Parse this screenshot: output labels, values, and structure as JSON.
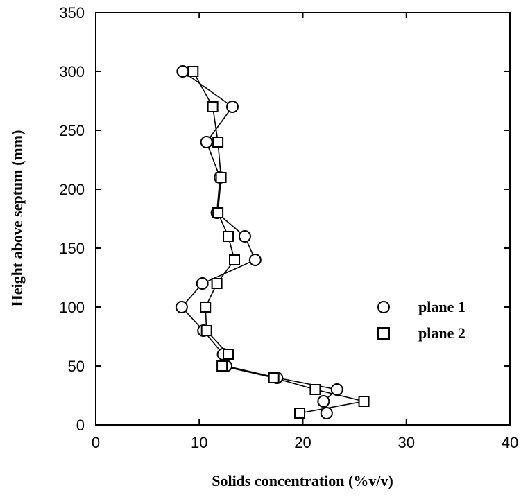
{
  "chart_data": {
    "type": "scatter",
    "title": "",
    "xlabel": "Solids concentration (%v/v)",
    "ylabel": "Height above septum (mm)",
    "xlim": [
      0,
      40
    ],
    "ylim": [
      0,
      350
    ],
    "xticks": [
      0,
      10,
      20,
      30,
      40
    ],
    "yticks": [
      0,
      50,
      100,
      150,
      200,
      250,
      300,
      350
    ],
    "grid": false,
    "legend_position": "right",
    "series": [
      {
        "name": "plane 1",
        "marker": "circle",
        "connected": true,
        "points": [
          [
            22.3,
            10
          ],
          [
            22.0,
            20
          ],
          [
            23.3,
            30
          ],
          [
            17.5,
            40
          ],
          [
            12.6,
            50
          ],
          [
            12.3,
            60
          ],
          [
            10.4,
            80
          ],
          [
            8.3,
            100
          ],
          [
            10.3,
            120
          ],
          [
            15.4,
            140
          ],
          [
            14.4,
            160
          ],
          [
            11.7,
            180
          ],
          [
            12.0,
            210
          ],
          [
            10.7,
            240
          ],
          [
            13.2,
            270
          ],
          [
            8.4,
            300
          ]
        ]
      },
      {
        "name": "plane 2",
        "marker": "square",
        "connected": true,
        "points": [
          [
            19.7,
            10
          ],
          [
            25.9,
            20
          ],
          [
            21.2,
            30
          ],
          [
            17.2,
            40
          ],
          [
            12.2,
            50
          ],
          [
            12.8,
            60
          ],
          [
            10.7,
            80
          ],
          [
            10.6,
            100
          ],
          [
            11.7,
            120
          ],
          [
            13.4,
            140
          ],
          [
            12.8,
            160
          ],
          [
            11.8,
            180
          ],
          [
            12.1,
            210
          ],
          [
            11.8,
            240
          ],
          [
            11.3,
            270
          ],
          [
            9.4,
            300
          ]
        ]
      }
    ]
  }
}
